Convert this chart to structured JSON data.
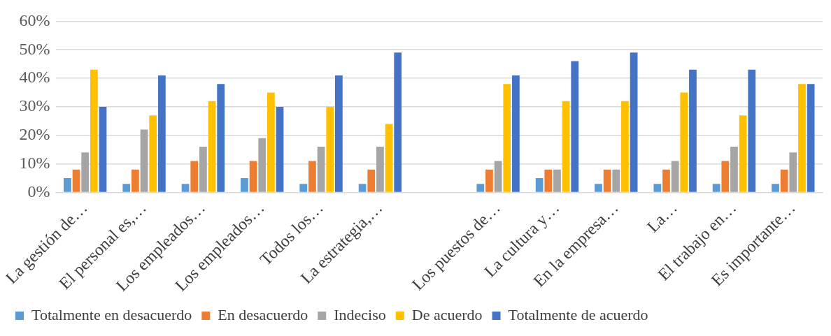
{
  "chart_data": {
    "type": "bar",
    "categories": [
      "La gestión de…",
      "El personal es,…",
      "Los empleados…",
      "Los empleados…",
      "Todos los…",
      "La estrategia,…",
      null,
      "Los puestos de…",
      "La cultura y…",
      "En la empresa…",
      "La…",
      "El trabajo en…",
      "Es importante…"
    ],
    "series": [
      {
        "name": "Totalmente en desacuerdo",
        "color": "#5b9bd5",
        "values": [
          5,
          3,
          3,
          5,
          3,
          3,
          null,
          3,
          5,
          3,
          3,
          3,
          3
        ]
      },
      {
        "name": "En desacuerdo",
        "color": "#ed7d31",
        "values": [
          8,
          8,
          11,
          11,
          11,
          8,
          null,
          8,
          8,
          8,
          8,
          11,
          8
        ]
      },
      {
        "name": "Indeciso",
        "color": "#a5a5a5",
        "values": [
          14,
          22,
          16,
          19,
          16,
          16,
          null,
          11,
          8,
          8,
          11,
          16,
          14
        ]
      },
      {
        "name": "De acuerdo",
        "color": "#ffc000",
        "values": [
          43,
          27,
          32,
          35,
          30,
          24,
          null,
          38,
          32,
          32,
          35,
          27,
          38
        ]
      },
      {
        "name": "Totalmente de acuerdo",
        "color": "#4472c4",
        "values": [
          30,
          41,
          38,
          30,
          41,
          49,
          null,
          41,
          46,
          49,
          43,
          43,
          38
        ]
      }
    ],
    "ylim": [
      0,
      60
    ],
    "yticks": [
      {
        "value": 0,
        "label": "0%"
      },
      {
        "value": 10,
        "label": "10%"
      },
      {
        "value": 20,
        "label": "20%"
      },
      {
        "value": 30,
        "label": "30%"
      },
      {
        "value": 40,
        "label": "40%"
      },
      {
        "value": 50,
        "label": "50%"
      },
      {
        "value": 60,
        "label": "60%"
      }
    ],
    "grid": "y",
    "legend": "bottom"
  }
}
